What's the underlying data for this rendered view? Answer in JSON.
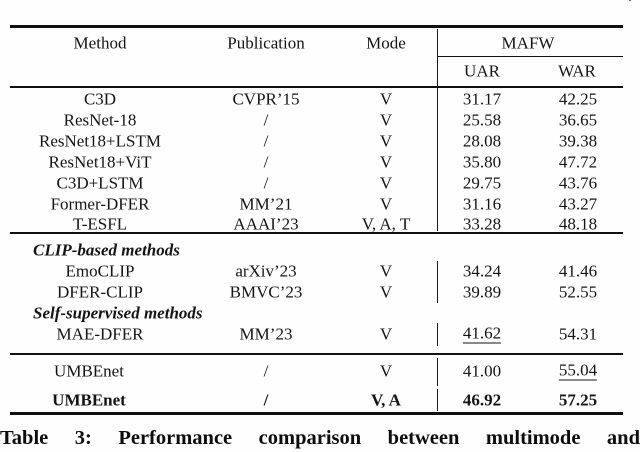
{
  "meta": {
    "corner_mark": "’",
    "caption": "Table 3: Performance comparison between multimode and"
  },
  "table": {
    "columns": {
      "method": "Method",
      "publication": "Publication",
      "mode": "Mode",
      "group": "MAFW",
      "uar": "UAR",
      "war": "WAR"
    },
    "rows": [
      {
        "type": "data",
        "method": "C3D",
        "publication": "CVPR’15",
        "mode": "V",
        "uar": "31.17",
        "war": "42.25"
      },
      {
        "type": "data",
        "method": "ResNet-18",
        "publication": "/",
        "mode": "V",
        "uar": "25.58",
        "war": "36.65"
      },
      {
        "type": "data",
        "method": "ResNet18+LSTM",
        "publication": "/",
        "mode": "V",
        "uar": "28.08",
        "war": "39.38"
      },
      {
        "type": "data",
        "method": "ResNet18+ViT",
        "publication": "/",
        "mode": "V",
        "uar": "35.80",
        "war": "47.72"
      },
      {
        "type": "data",
        "method": "C3D+LSTM",
        "publication": "/",
        "mode": "V",
        "uar": "29.75",
        "war": "43.76"
      },
      {
        "type": "data",
        "method": "Former-DFER",
        "publication": "MM’21",
        "mode": "V",
        "uar": "31.16",
        "war": "43.27"
      },
      {
        "type": "data",
        "method": "T-ESFL",
        "publication": "AAAI’23",
        "mode": "V, A, T",
        "uar": "33.28",
        "war": "48.18"
      },
      {
        "type": "section",
        "label": "CLIP-based methods"
      },
      {
        "type": "data",
        "method": "EmoCLIP",
        "publication": "arXiv’23",
        "mode": "V",
        "uar": "34.24",
        "war": "41.46"
      },
      {
        "type": "data",
        "method": "DFER-CLIP",
        "publication": "BMVC’23",
        "mode": "V",
        "uar": "39.89",
        "war": "52.55"
      },
      {
        "type": "section",
        "label": "Self-supervised methods"
      },
      {
        "type": "data",
        "method": "MAE-DFER",
        "publication": "MM’23",
        "mode": "V",
        "uar": "41.62",
        "war": "54.31",
        "uar_underline": true
      },
      {
        "type": "data",
        "method": "UMBEnet",
        "publication": "/",
        "mode": "V",
        "uar": "41.00",
        "war": "55.04",
        "war_underline": true
      },
      {
        "type": "data",
        "method": "UMBEnet",
        "publication": "/",
        "mode": "V, A",
        "uar": "46.92",
        "war": "57.25",
        "bold": true
      }
    ]
  }
}
